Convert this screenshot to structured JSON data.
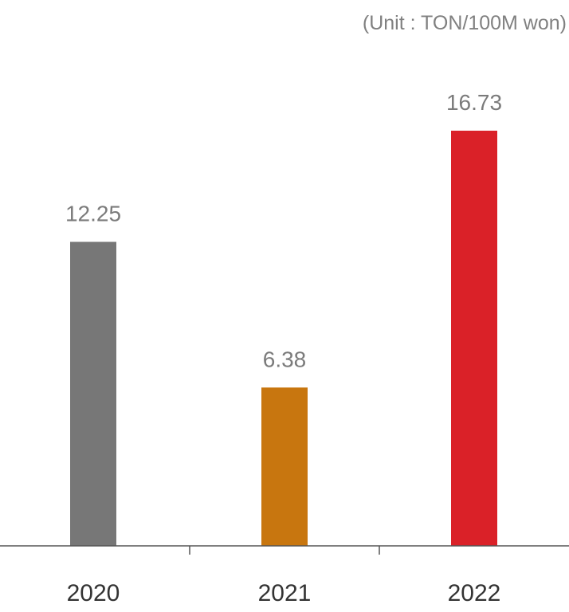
{
  "chart_data": {
    "type": "bar",
    "unit": "(Unit : TON/100M won)",
    "categories": [
      "2020",
      "2021",
      "2022"
    ],
    "values": [
      12.25,
      6.38,
      16.73
    ],
    "value_labels": [
      "12.25",
      "6.38",
      "16.73"
    ],
    "bar_colors": [
      "#777777",
      "#c8760f",
      "#da2128"
    ],
    "ylim": [
      0,
      16.73
    ],
    "grid": false,
    "legend": "none",
    "axis_color": "#555555"
  }
}
